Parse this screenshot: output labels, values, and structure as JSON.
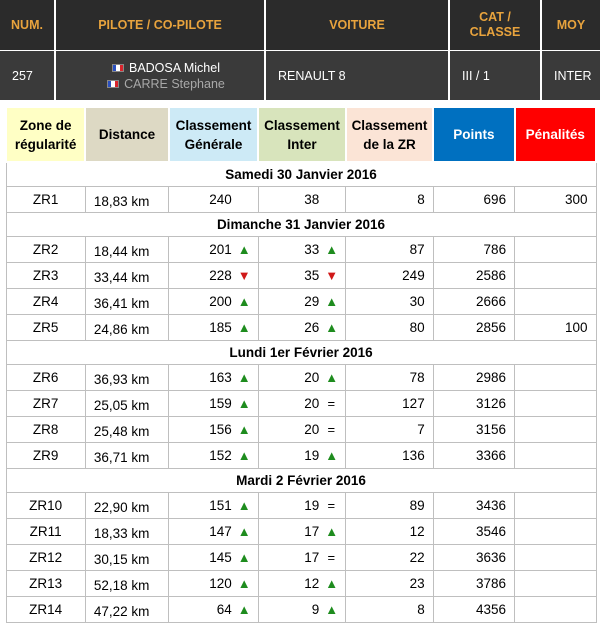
{
  "header": {
    "columns": [
      "NUM.",
      "PILOTE / CO-PILOTE",
      "VOITURE",
      "CAT / CLASSE",
      "MOY"
    ],
    "num": "257",
    "pilote": "BADOSA Michel",
    "copilote": "CARRE Stephane",
    "flag_icon": "france-flag-icon",
    "voiture": "RENAULT 8",
    "cat_classe": "III / 1",
    "moy": "INTER"
  },
  "table": {
    "headers": [
      "Zone de régularité",
      "Distance",
      "Classement Générale",
      "Classement Inter",
      "Classement de la ZR",
      "Points",
      "Pénalités"
    ],
    "header_colors": [
      "#ffffc5",
      "#ddd9c4",
      "#cdeaf6",
      "#d8e4bc",
      "#fbe4d6",
      "#0070c0",
      "#ff0000"
    ],
    "days": [
      {
        "label": "Samedi 30 Janvier 2016",
        "rows": [
          {
            "zr": "ZR1",
            "distance": "18,83 km",
            "gen": "240",
            "gen_ind": "",
            "inter": "38",
            "inter_ind": "",
            "zr_rank": "8",
            "points": "696",
            "penalites": "300"
          }
        ]
      },
      {
        "label": "Dimanche 31 Janvier 2016",
        "rows": [
          {
            "zr": "ZR2",
            "distance": "18,44 km",
            "gen": "201",
            "gen_ind": "▲",
            "inter": "33",
            "inter_ind": "▲",
            "zr_rank": "87",
            "points": "786",
            "penalites": ""
          },
          {
            "zr": "ZR3",
            "distance": "33,44 km",
            "gen": "228",
            "gen_ind": "▼",
            "inter": "35",
            "inter_ind": "▼",
            "zr_rank": "249",
            "points": "2586",
            "penalites": ""
          },
          {
            "zr": "ZR4",
            "distance": "36,41 km",
            "gen": "200",
            "gen_ind": "▲",
            "inter": "29",
            "inter_ind": "▲",
            "zr_rank": "30",
            "points": "2666",
            "penalites": ""
          },
          {
            "zr": "ZR5",
            "distance": "24,86 km",
            "gen": "185",
            "gen_ind": "▲",
            "inter": "26",
            "inter_ind": "▲",
            "zr_rank": "80",
            "points": "2856",
            "penalites": "100"
          }
        ]
      },
      {
        "label": "Lundi 1er Février 2016",
        "rows": [
          {
            "zr": "ZR6",
            "distance": "36,93 km",
            "gen": "163",
            "gen_ind": "▲",
            "inter": "20",
            "inter_ind": "▲",
            "zr_rank": "78",
            "points": "2986",
            "penalites": ""
          },
          {
            "zr": "ZR7",
            "distance": "25,05 km",
            "gen": "159",
            "gen_ind": "▲",
            "inter": "20",
            "inter_ind": "=",
            "zr_rank": "127",
            "points": "3126",
            "penalites": ""
          },
          {
            "zr": "ZR8",
            "distance": "25,48 km",
            "gen": "156",
            "gen_ind": "▲",
            "inter": "20",
            "inter_ind": "=",
            "zr_rank": "7",
            "points": "3156",
            "penalites": ""
          },
          {
            "zr": "ZR9",
            "distance": "36,71 km",
            "gen": "152",
            "gen_ind": "▲",
            "inter": "19",
            "inter_ind": "▲",
            "zr_rank": "136",
            "points": "3366",
            "penalites": ""
          }
        ]
      },
      {
        "label": "Mardi 2 Février 2016",
        "rows": [
          {
            "zr": "ZR10",
            "distance": "22,90 km",
            "gen": "151",
            "gen_ind": "▲",
            "inter": "19",
            "inter_ind": "=",
            "zr_rank": "89",
            "points": "3436",
            "penalites": ""
          },
          {
            "zr": "ZR11",
            "distance": "18,33 km",
            "gen": "147",
            "gen_ind": "▲",
            "inter": "17",
            "inter_ind": "▲",
            "zr_rank": "12",
            "points": "3546",
            "penalites": ""
          },
          {
            "zr": "ZR12",
            "distance": "30,15 km",
            "gen": "145",
            "gen_ind": "▲",
            "inter": "17",
            "inter_ind": "=",
            "zr_rank": "22",
            "points": "3636",
            "penalites": ""
          },
          {
            "zr": "ZR13",
            "distance": "52,18 km",
            "gen": "120",
            "gen_ind": "▲",
            "inter": "12",
            "inter_ind": "▲",
            "zr_rank": "23",
            "points": "3786",
            "penalites": ""
          },
          {
            "zr": "ZR14",
            "distance": "47,22 km",
            "gen": "64",
            "gen_ind": "▲",
            "inter": "9",
            "inter_ind": "▲",
            "zr_rank": "8",
            "points": "4356",
            "penalites": ""
          }
        ]
      }
    ]
  }
}
